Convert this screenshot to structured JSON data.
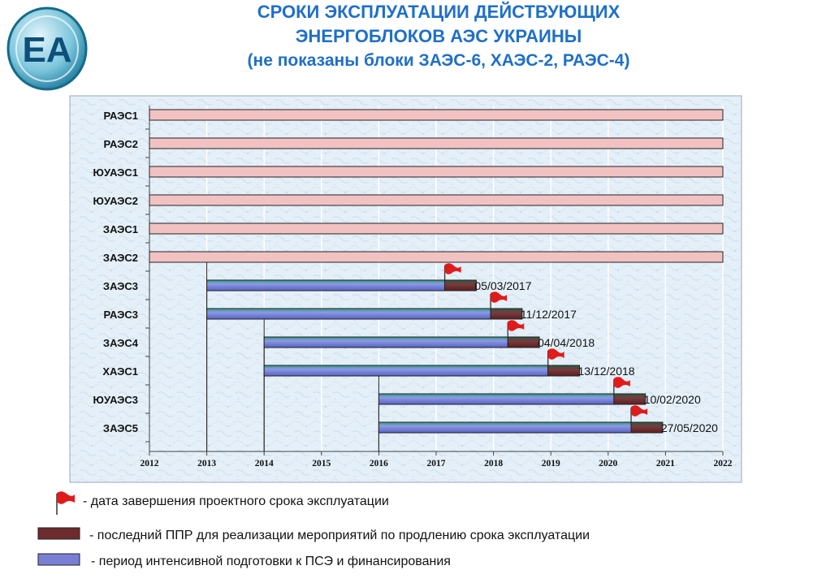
{
  "title": {
    "line1": "СРОКИ ЭКСПЛУАТАЦИИ ДЕЙСТВУЮЩИХ",
    "line2": "ЭНЕРГОБЛОКОВ АЭС УКРАИНЫ",
    "line3": "(не показаны блоки ЗАЭС-6, ХАЭС-2, РАЭС-4)"
  },
  "logo": {
    "text": "ЕА",
    "icon": "energoatom-logo"
  },
  "chart_data": {
    "type": "gantt-bar",
    "xlim": [
      2012,
      2022
    ],
    "x_ticks": [
      2012,
      2013,
      2014,
      2015,
      2016,
      2017,
      2018,
      2019,
      2020,
      2021,
      2022
    ],
    "grid": true,
    "colors": {
      "long_term": "#f2c2c2",
      "preparation": "#7a7fd6",
      "last_outage": "#6e2b2e",
      "flag": "#e01b1b"
    },
    "rows": [
      {
        "name": "РАЭС1",
        "long_term": [
          2012,
          2022
        ]
      },
      {
        "name": "РАЭС2",
        "long_term": [
          2012,
          2022
        ]
      },
      {
        "name": "ЮУАЭС1",
        "long_term": [
          2012,
          2022
        ]
      },
      {
        "name": "ЮУАЭС2",
        "long_term": [
          2012,
          2022
        ]
      },
      {
        "name": "ЗАЭС1",
        "long_term": [
          2012,
          2022
        ]
      },
      {
        "name": "ЗАЭС2",
        "long_term": [
          2012,
          2022
        ]
      },
      {
        "name": "ЗАЭС3",
        "preparation": [
          2013.0,
          2017.15
        ],
        "last_outage": [
          2017.15,
          2017.7
        ],
        "end_date": "05/03/2017",
        "flag_x": 2017.15
      },
      {
        "name": "РАЭС3",
        "preparation": [
          2013.0,
          2017.95
        ],
        "last_outage": [
          2017.95,
          2018.5
        ],
        "end_date": "11/12/2017",
        "flag_x": 2017.95
      },
      {
        "name": "ЗАЭС4",
        "preparation": [
          2014.0,
          2018.25
        ],
        "last_outage": [
          2018.25,
          2018.8
        ],
        "end_date": "04/04/2018",
        "flag_x": 2018.25
      },
      {
        "name": "ХАЭС1",
        "preparation": [
          2014.0,
          2018.95
        ],
        "last_outage": [
          2018.95,
          2019.5
        ],
        "end_date": "13/12/2018",
        "flag_x": 2018.95
      },
      {
        "name": "ЮУАЭС3",
        "preparation": [
          2016.0,
          2020.1
        ],
        "last_outage": [
          2020.1,
          2020.65
        ],
        "end_date": "10/02/2020",
        "flag_x": 2020.1
      },
      {
        "name": "ЗАЭС5",
        "preparation": [
          2016.0,
          2020.4
        ],
        "last_outage": [
          2020.4,
          2020.95
        ],
        "end_date": "27/05/2020",
        "flag_x": 2020.4
      }
    ],
    "legend": [
      {
        "key": "flag",
        "text": "- дата завершения проектного срока эксплуатации"
      },
      {
        "key": "last_outage",
        "text": "-  последний ППР  для реализации мероприятий по продлению срока эксплуатации"
      },
      {
        "key": "preparation",
        "text": " - период интенсивной подготовки к ПСЭ и финансирования"
      }
    ]
  }
}
